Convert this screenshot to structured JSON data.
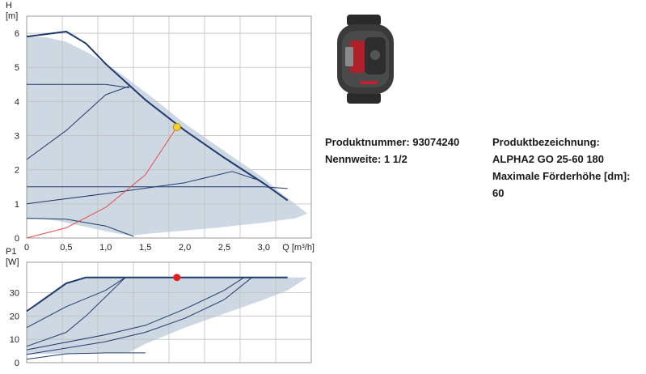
{
  "chart_data": [
    {
      "type": "line",
      "title": "",
      "ylabel_line1": "H",
      "ylabel_line2": "[m]",
      "xlabel": "Q [m³/h]",
      "xlim": [
        0,
        3.6
      ],
      "ylim": [
        0,
        6.5
      ],
      "xticks": [
        "0",
        "0,5",
        "1,0",
        "1,5",
        "2,0",
        "2,5",
        "3,0"
      ],
      "yticks": [
        "0",
        "1",
        "2",
        "3",
        "4",
        "5",
        "6"
      ],
      "grid": true,
      "area": [
        [
          0,
          5.9
        ],
        [
          0.25,
          5.88
        ],
        [
          0.5,
          5.75
        ],
        [
          0.8,
          5.4
        ],
        [
          1.2,
          4.8
        ],
        [
          1.6,
          4.1
        ],
        [
          2.0,
          3.35
        ],
        [
          2.5,
          2.55
        ],
        [
          3.0,
          1.75
        ],
        [
          3.2,
          1.35
        ],
        [
          3.45,
          0.9
        ],
        [
          3.55,
          0.72
        ],
        [
          3.4,
          0.58
        ],
        [
          3.0,
          0.45
        ],
        [
          2.4,
          0.3
        ],
        [
          2.0,
          0.22
        ],
        [
          1.6,
          0.14
        ],
        [
          1.3,
          0.07
        ],
        [
          1.0,
          0.2
        ],
        [
          0.7,
          0.35
        ],
        [
          0.4,
          0.5
        ],
        [
          0.2,
          0.55
        ],
        [
          0,
          0.55
        ]
      ],
      "series": [
        {
          "values": [
            [
              0,
              5.9
            ],
            [
              0.5,
              6.05
            ],
            [
              0.75,
              5.7
            ],
            [
              1.0,
              5.1
            ],
            [
              1.5,
              4.05
            ],
            [
              2.0,
              3.15
            ],
            [
              2.5,
              2.35
            ],
            [
              3.0,
              1.6
            ],
            [
              3.3,
              1.1
            ]
          ]
        },
        {
          "values": [
            [
              0,
              4.5
            ],
            [
              1.0,
              4.5
            ],
            [
              1.3,
              4.4
            ]
          ]
        },
        {
          "values": [
            [
              0,
              2.3
            ],
            [
              0.5,
              3.15
            ],
            [
              1.0,
              4.2
            ],
            [
              1.3,
              4.45
            ]
          ]
        },
        {
          "values": [
            [
              0,
              1.0
            ],
            [
              1.0,
              1.3
            ],
            [
              2.0,
              1.62
            ],
            [
              2.6,
              1.95
            ],
            [
              2.9,
              1.72
            ]
          ]
        },
        {
          "values": [
            [
              0,
              1.5
            ],
            [
              1.0,
              1.5
            ],
            [
              2.0,
              1.5
            ],
            [
              3.0,
              1.5
            ],
            [
              3.3,
              1.45
            ]
          ]
        },
        {
          "values": [
            [
              0,
              0.58
            ],
            [
              0.5,
              0.55
            ],
            [
              1.0,
              0.35
            ],
            [
              1.35,
              0.05
            ]
          ]
        },
        {
          "values": [
            [
              0,
              0
            ],
            [
              0.5,
              0.3
            ],
            [
              1.0,
              0.9
            ],
            [
              1.5,
              1.85
            ],
            [
              1.9,
              3.25
            ]
          ],
          "color": "#e84a4a"
        }
      ],
      "operating_point": {
        "x": 1.9,
        "y": 3.25,
        "color": "#f2d324"
      }
    },
    {
      "type": "line",
      "title": "",
      "ylabel_line1": "P1",
      "ylabel_line2": "[W]",
      "xlabel": "",
      "xlim": [
        0,
        3.6
      ],
      "ylim": [
        0,
        43
      ],
      "xticks": [],
      "yticks": [
        "0",
        "10",
        "20",
        "30"
      ],
      "grid": true,
      "area": [
        [
          0,
          21
        ],
        [
          0.25,
          28
        ],
        [
          0.5,
          34
        ],
        [
          0.75,
          36.5
        ],
        [
          1.5,
          36.5
        ],
        [
          2.5,
          36.5
        ],
        [
          3.3,
          36.5
        ],
        [
          3.55,
          36.5
        ],
        [
          3.3,
          31
        ],
        [
          3.0,
          27
        ],
        [
          2.5,
          21
        ],
        [
          2.0,
          15
        ],
        [
          1.5,
          8
        ],
        [
          1.3,
          4.5
        ],
        [
          0.8,
          4.3
        ],
        [
          0.3,
          3.8
        ],
        [
          0,
          3.5
        ]
      ],
      "series": [
        {
          "values": [
            [
              0,
              22
            ],
            [
              0.5,
              34
            ],
            [
              0.75,
              36.5
            ],
            [
              1.5,
              36.5
            ],
            [
              2.5,
              36.5
            ],
            [
              3.3,
              36.5
            ]
          ]
        },
        {
          "values": [
            [
              0,
              15
            ],
            [
              0.5,
              24
            ],
            [
              1.0,
              31
            ],
            [
              1.25,
              36.5
            ]
          ]
        },
        {
          "values": [
            [
              0,
              7
            ],
            [
              0.5,
              13
            ],
            [
              0.75,
              20
            ],
            [
              1.25,
              36.5
            ]
          ]
        },
        {
          "values": [
            [
              0,
              5.5
            ],
            [
              1.0,
              12
            ],
            [
              1.5,
              16
            ],
            [
              2.0,
              23
            ],
            [
              2.5,
              31
            ],
            [
              2.75,
              36.5
            ]
          ]
        },
        {
          "values": [
            [
              0,
              3.5
            ],
            [
              1.0,
              9
            ],
            [
              1.5,
              13
            ],
            [
              2.0,
              19
            ],
            [
              2.5,
              27
            ],
            [
              2.85,
              36.5
            ]
          ]
        },
        {
          "values": [
            [
              0,
              1.5
            ],
            [
              0.5,
              3.8
            ],
            [
              1.0,
              4.2
            ],
            [
              1.5,
              4.2
            ]
          ]
        }
      ],
      "operating_point": {
        "x": 1.9,
        "y": 36.5,
        "color": "#e81e1e"
      }
    }
  ],
  "info": {
    "product_number": "Produktnummer: 93074240",
    "nominal_width": "Nennweite: 1 1/2",
    "designation_label": "Produktbezeichnung:",
    "designation_value": "ALPHA2 GO 25-60 180",
    "max_head_label": "Maximale Förderhöhe [dm]:",
    "max_head_value": "60"
  },
  "colors": {
    "curve": "#1f3a6e",
    "area": "#cdd8e3",
    "grid": "#bfbfbf",
    "system_curve": "#e84a4a"
  }
}
